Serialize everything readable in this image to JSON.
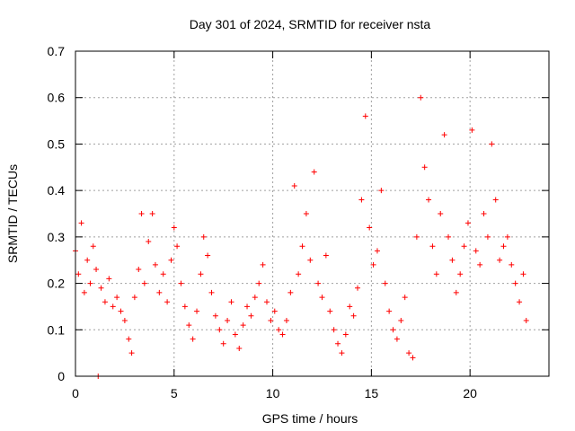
{
  "chart_data": {
    "type": "scatter",
    "title": "Day 301 of 2024, SRMTID for receiver nsta",
    "xlabel": "GPS time / hours",
    "ylabel": "SRMTID / TECUs",
    "xlim": [
      0,
      24
    ],
    "ylim": [
      0,
      0.7
    ],
    "xticks": [
      0,
      5,
      10,
      15,
      20
    ],
    "xtick_labels": [
      "0",
      "5",
      "10",
      "15",
      "20"
    ],
    "yticks": [
      0,
      0.1,
      0.2,
      0.3,
      0.4,
      0.5,
      0.6,
      0.7
    ],
    "ytick_labels": [
      "0",
      "0.1",
      "0.2",
      "0.3",
      "0.4",
      "0.5",
      "0.6",
      "0.7"
    ],
    "grid": true,
    "marker": "+",
    "color": "#ff0000",
    "series": [
      {
        "name": "SRMTID",
        "x": [
          0.0,
          0.15,
          0.3,
          0.45,
          0.6,
          0.75,
          0.9,
          1.05,
          1.15,
          1.3,
          1.5,
          1.7,
          1.9,
          2.1,
          2.3,
          2.5,
          2.7,
          2.85,
          3.0,
          3.2,
          3.35,
          3.5,
          3.7,
          3.9,
          4.05,
          4.25,
          4.45,
          4.65,
          4.85,
          5.0,
          5.15,
          5.35,
          5.55,
          5.75,
          5.95,
          6.15,
          6.35,
          6.5,
          6.7,
          6.9,
          7.1,
          7.3,
          7.5,
          7.7,
          7.9,
          8.1,
          8.3,
          8.5,
          8.7,
          8.9,
          9.1,
          9.3,
          9.5,
          9.7,
          9.9,
          10.1,
          10.3,
          10.5,
          10.7,
          10.9,
          11.1,
          11.3,
          11.5,
          11.7,
          11.9,
          12.1,
          12.3,
          12.5,
          12.7,
          12.9,
          13.1,
          13.3,
          13.5,
          13.7,
          13.9,
          14.1,
          14.3,
          14.5,
          14.7,
          14.9,
          15.1,
          15.3,
          15.5,
          15.7,
          15.9,
          16.1,
          16.3,
          16.5,
          16.7,
          16.9,
          17.1,
          17.3,
          17.5,
          17.7,
          17.9,
          18.1,
          18.3,
          18.5,
          18.7,
          18.9,
          19.1,
          19.3,
          19.5,
          19.7,
          19.9,
          20.1,
          20.3,
          20.5,
          20.7,
          20.9,
          21.1,
          21.3,
          21.5,
          21.7,
          21.9,
          22.1,
          22.3,
          22.5,
          22.7,
          22.85
        ],
        "y": [
          0.27,
          0.22,
          0.33,
          0.18,
          0.25,
          0.2,
          0.28,
          0.23,
          0.0,
          0.19,
          0.16,
          0.21,
          0.15,
          0.17,
          0.14,
          0.12,
          0.08,
          0.05,
          0.17,
          0.23,
          0.35,
          0.2,
          0.29,
          0.35,
          0.24,
          0.18,
          0.22,
          0.16,
          0.25,
          0.32,
          0.28,
          0.2,
          0.15,
          0.11,
          0.08,
          0.14,
          0.22,
          0.3,
          0.26,
          0.18,
          0.13,
          0.1,
          0.07,
          0.12,
          0.16,
          0.09,
          0.06,
          0.11,
          0.15,
          0.13,
          0.17,
          0.2,
          0.24,
          0.16,
          0.12,
          0.14,
          0.1,
          0.09,
          0.12,
          0.18,
          0.41,
          0.22,
          0.28,
          0.35,
          0.25,
          0.44,
          0.2,
          0.17,
          0.26,
          0.14,
          0.1,
          0.07,
          0.05,
          0.09,
          0.15,
          0.13,
          0.19,
          0.38,
          0.56,
          0.32,
          0.24,
          0.27,
          0.4,
          0.2,
          0.14,
          0.1,
          0.08,
          0.12,
          0.17,
          0.05,
          0.04,
          0.3,
          0.6,
          0.45,
          0.38,
          0.28,
          0.22,
          0.35,
          0.52,
          0.3,
          0.25,
          0.18,
          0.22,
          0.28,
          0.33,
          0.53,
          0.27,
          0.24,
          0.35,
          0.3,
          0.5,
          0.38,
          0.25,
          0.28,
          0.3,
          0.24,
          0.2,
          0.16,
          0.22,
          0.12
        ]
      }
    ]
  }
}
